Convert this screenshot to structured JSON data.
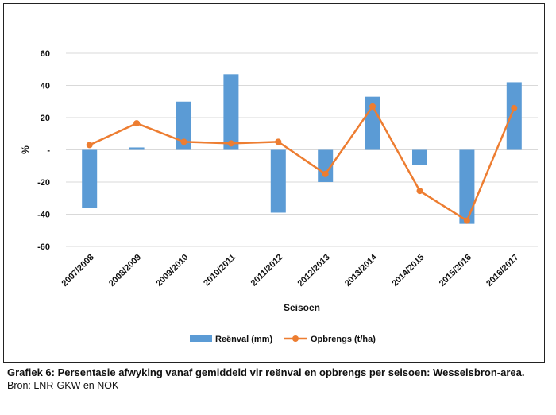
{
  "chart_data": {
    "type": "bar",
    "categories": [
      "2007/2008",
      "2008/2009",
      "2009/2010",
      "2010/2011",
      "2011/2012",
      "2012/2013",
      "2013/2014",
      "2014/2015",
      "2015/2016",
      "2016/2017"
    ],
    "series": [
      {
        "name": "Reënval (mm)",
        "type": "bar",
        "color": "#5b9bd5",
        "values": [
          -36,
          1.5,
          30,
          47,
          -39,
          -20,
          33,
          -9.5,
          -46,
          42
        ]
      },
      {
        "name": "Opbrengs (t/ha)",
        "type": "line",
        "color": "#ed7d31",
        "values": [
          3,
          16.5,
          5,
          4,
          5,
          -15,
          27,
          -25.5,
          -44,
          26
        ]
      }
    ],
    "xlabel": "Seisoen",
    "ylabel": "%",
    "ylim": [
      -60,
      60
    ],
    "yticks": [
      60,
      40,
      20,
      0,
      -20,
      -40,
      -60
    ],
    "ytick_labels": [
      "60",
      "40",
      "20",
      "-",
      "-20",
      "-40",
      "-60"
    ],
    "grid": true,
    "legend": "bottom"
  },
  "caption": {
    "title": "Grafiek 6: Persentasie afwyking vanaf gemiddeld vir reënval en opbrengs per seisoen: Wesselsbron-area.",
    "source": "Bron: LNR-GKW en NOK"
  }
}
